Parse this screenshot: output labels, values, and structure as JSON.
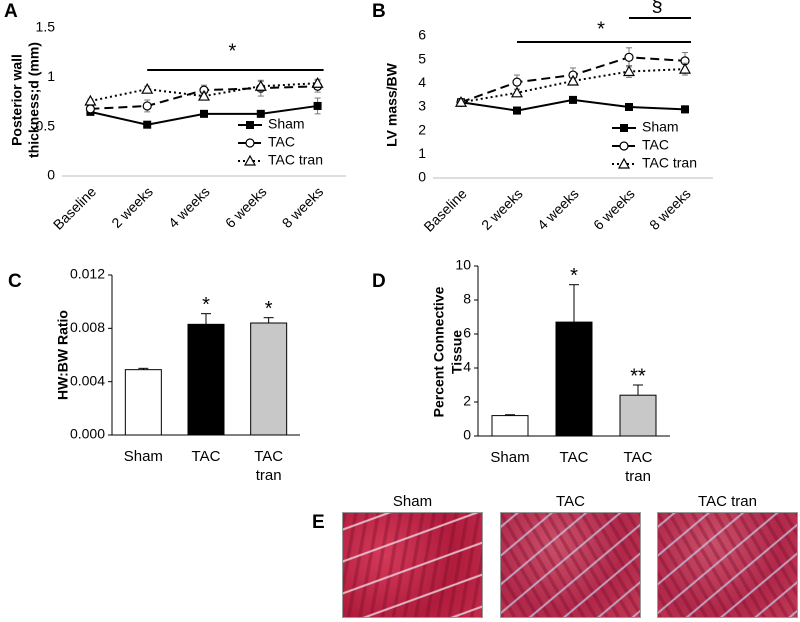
{
  "chart_data": [
    {
      "type": "line",
      "label": "A",
      "ylabel": [
        "Posterior wall",
        "thickness;d (mm)"
      ],
      "categories": [
        "Baseline",
        "2 weeks",
        "4 weeks",
        "6 weeks",
        "8 weeks"
      ],
      "ylim": [
        0,
        1.5
      ],
      "yticks": [
        0,
        0.5,
        1,
        1.5
      ],
      "legend": "lower right",
      "annotations": [
        "*"
      ],
      "series": [
        {
          "name": "Sham",
          "color": "#000000",
          "line_style": "solid",
          "marker": "square",
          "values": [
            0.65,
            0.52,
            0.63,
            0.63,
            0.71
          ],
          "errors": [
            0.02,
            0.03,
            0.02,
            0.02,
            0.08
          ]
        },
        {
          "name": "TAC",
          "color": "#000000",
          "line_style": "dashed",
          "marker": "circle",
          "values": [
            0.68,
            0.71,
            0.87,
            0.89,
            0.91
          ],
          "errors": [
            0.03,
            0.06,
            0.05,
            0.08,
            0.06
          ]
        },
        {
          "name": "TAC tran",
          "color": "#000000",
          "line_style": "dotted",
          "marker": "triangle",
          "values": [
            0.76,
            0.88,
            0.81,
            0.91,
            0.94
          ],
          "errors": [
            0.02,
            0.03,
            0.04,
            0.05,
            0.04
          ]
        }
      ]
    },
    {
      "type": "line",
      "label": "B",
      "ylabel": [
        "LV mass/BW"
      ],
      "categories": [
        "Baseline",
        "2 weeks",
        "4 weeks",
        "6 weeks",
        "8 weeks"
      ],
      "ylim": [
        0,
        6
      ],
      "yticks": [
        0,
        1,
        2,
        3,
        4,
        5,
        6
      ],
      "legend": "lower right",
      "annotations": [
        "*",
        "§"
      ],
      "series": [
        {
          "name": "Sham",
          "color": "#000000",
          "line_style": "solid",
          "marker": "square",
          "values": [
            3.2,
            2.85,
            3.3,
            3.0,
            2.9
          ],
          "errors": [
            0.1,
            0.15,
            0.1,
            0.08,
            0.15
          ]
        },
        {
          "name": "TAC",
          "color": "#000000",
          "line_style": "dashed",
          "marker": "circle",
          "values": [
            3.2,
            4.05,
            4.35,
            5.1,
            4.95
          ],
          "errors": [
            0.1,
            0.3,
            0.3,
            0.4,
            0.35
          ]
        },
        {
          "name": "TAC tran",
          "color": "#000000",
          "line_style": "dotted",
          "marker": "triangle",
          "values": [
            3.2,
            3.6,
            4.1,
            4.5,
            4.6
          ],
          "errors": [
            0.1,
            0.15,
            0.15,
            0.25,
            0.25
          ]
        }
      ]
    },
    {
      "type": "bar",
      "label": "C",
      "ylabel": [
        "HW:BW Ratio"
      ],
      "categories": [
        "Sham",
        "TAC",
        "TAC tran"
      ],
      "ylim": [
        0,
        0.012
      ],
      "yticks": [
        {
          "value": 0,
          "label": "0.000"
        },
        {
          "value": 0.004,
          "label": "0.004"
        },
        {
          "value": 0.008,
          "label": "0.008"
        },
        {
          "value": 0.012,
          "label": "0.012"
        }
      ],
      "values": [
        0.0049,
        0.0083,
        0.0084
      ],
      "errors": [
        0.0001,
        0.0008,
        0.0004
      ],
      "colors": [
        "#ffffff",
        "#000000",
        "#c8c8c8"
      ],
      "value_marks": [
        null,
        "*",
        "*"
      ]
    },
    {
      "type": "bar",
      "label": "D",
      "ylabel": [
        "Percent Connective",
        "Tissue"
      ],
      "categories": [
        "Sham",
        "TAC",
        "TAC tran"
      ],
      "ylim": [
        0,
        10
      ],
      "yticks": [
        0,
        2,
        4,
        6,
        8,
        10
      ],
      "values": [
        1.2,
        6.7,
        2.4
      ],
      "errors": [
        0.05,
        2.2,
        0.6
      ],
      "colors": [
        "#ffffff",
        "#000000",
        "#c8c8c8"
      ],
      "value_marks": [
        null,
        "*",
        "**"
      ]
    }
  ],
  "panel_e": {
    "label": "E",
    "captions": [
      "Sham",
      "TAC",
      "TAC tran"
    ]
  }
}
